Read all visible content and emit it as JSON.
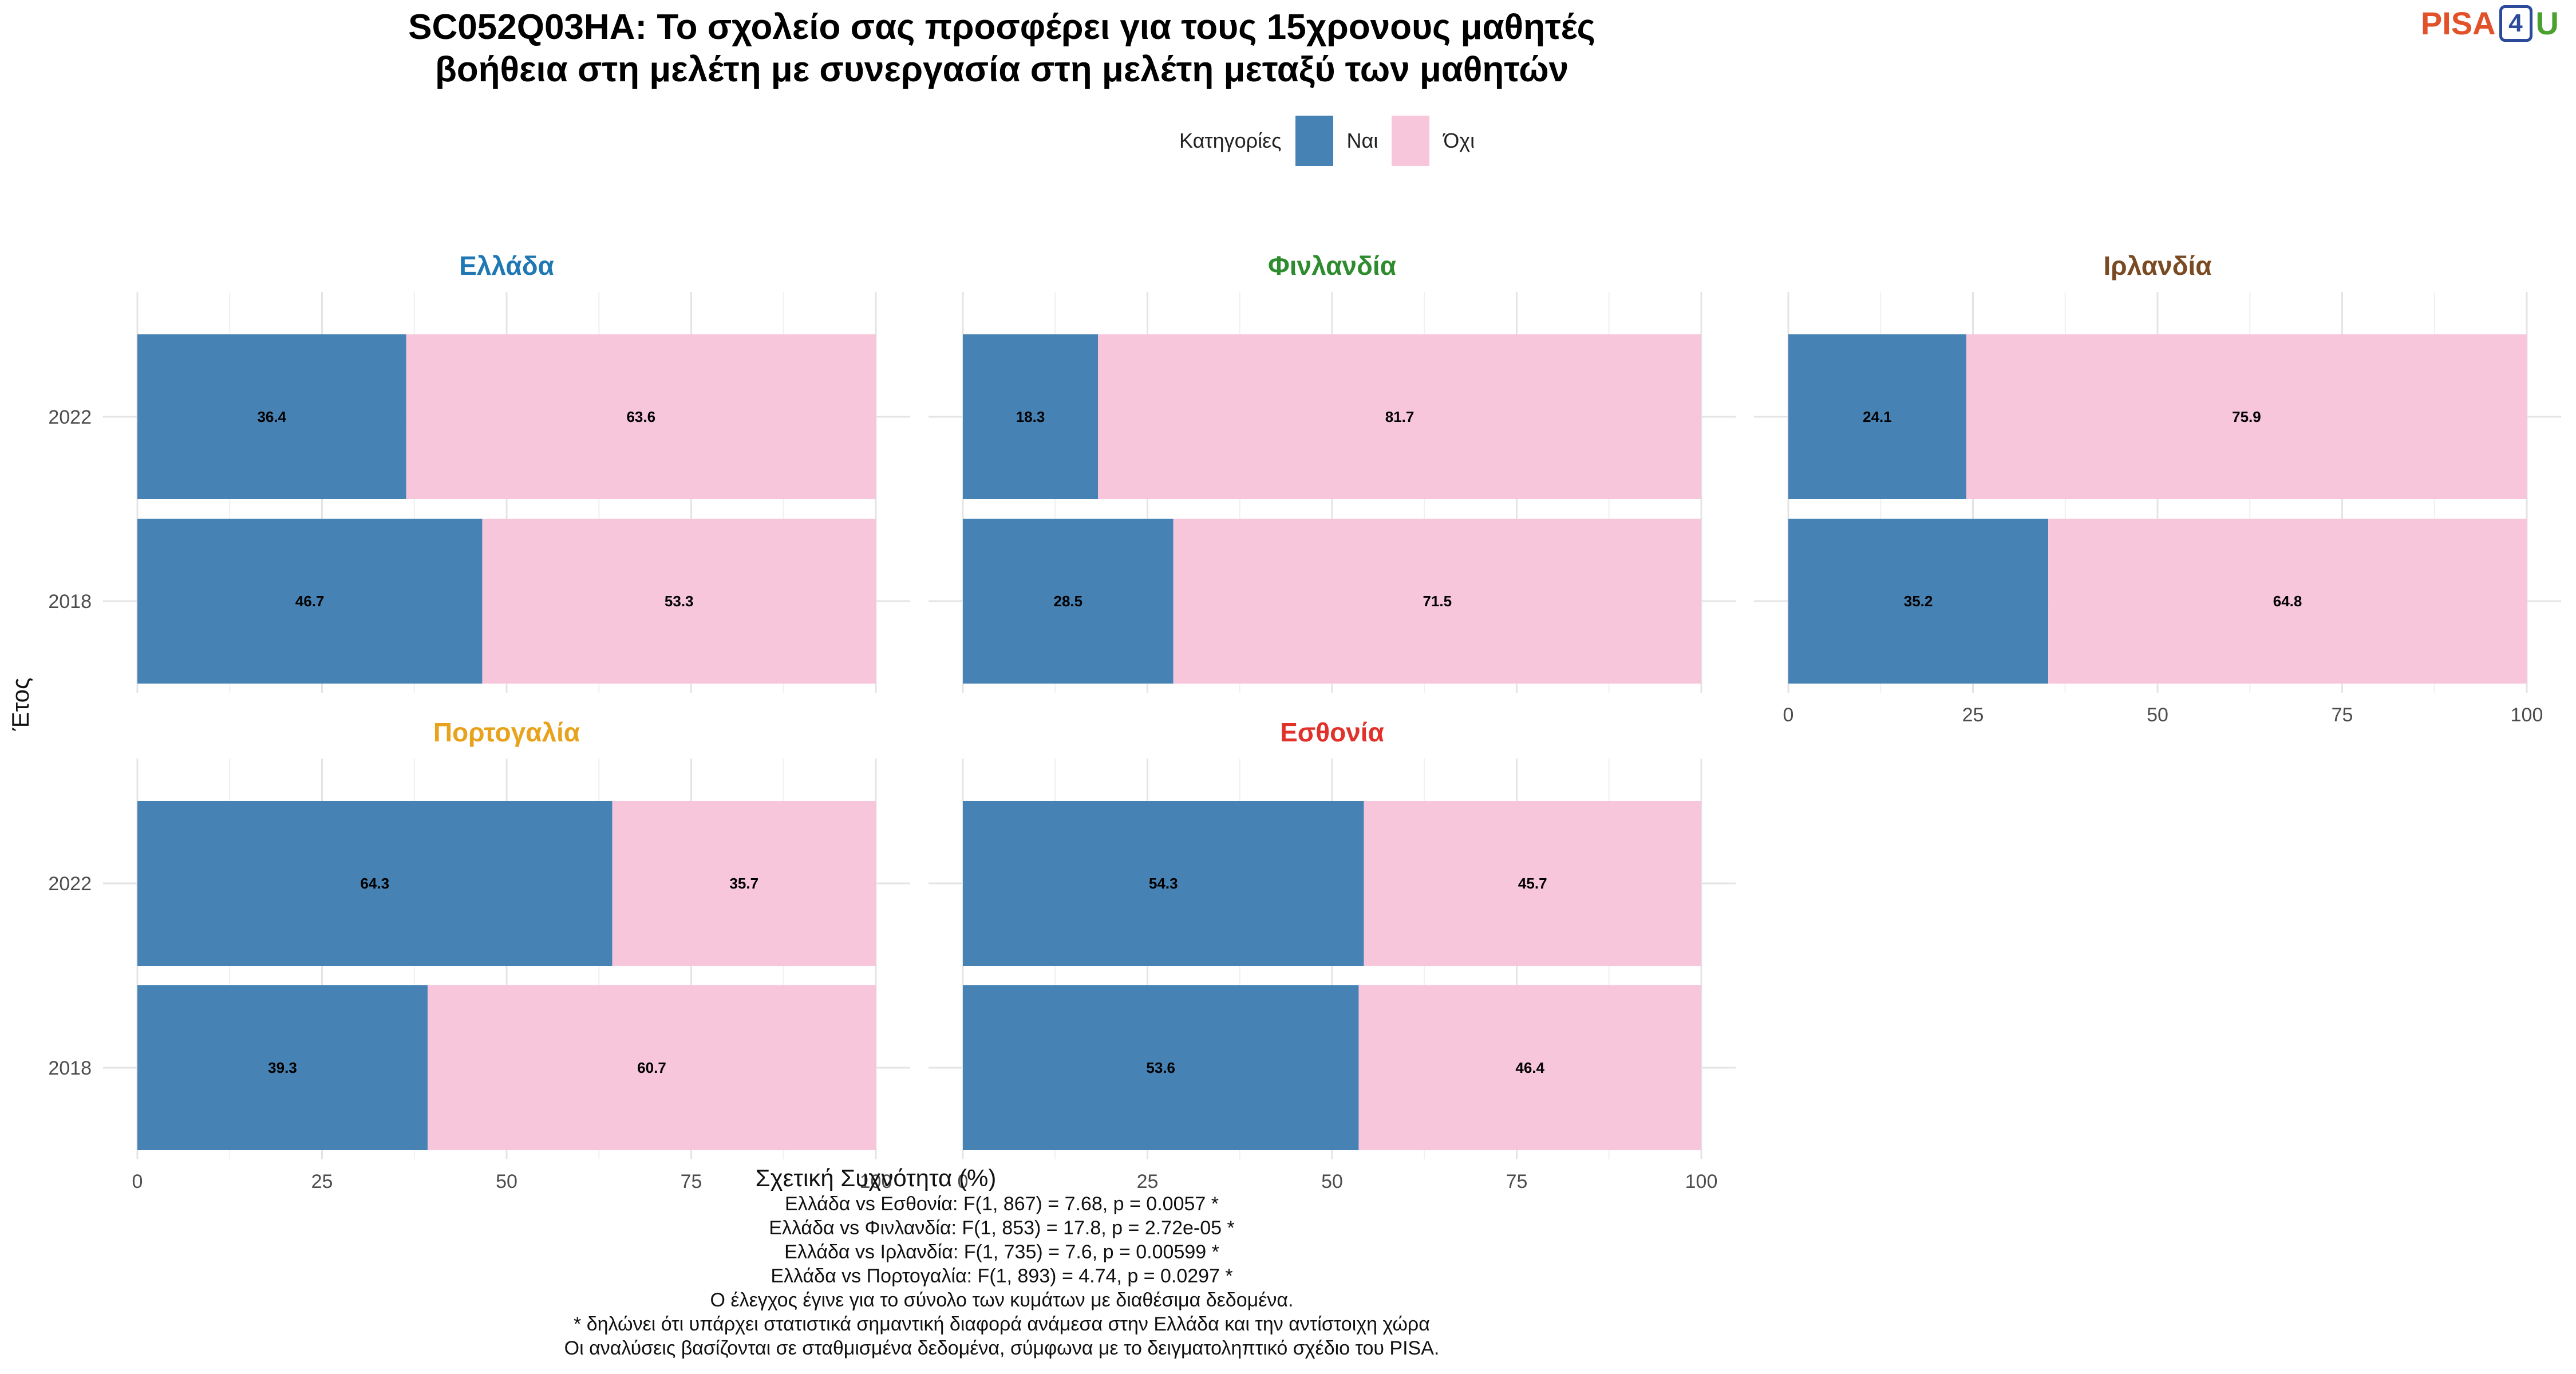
{
  "title_line1": "SC052Q03HA: Το σχολείο σας προσφέρει για τους 15χρονους μαθητές",
  "title_line2": "βοήθεια στη μελέτη με συνεργασία στη μελέτη μεταξύ των μαθητών",
  "logo": {
    "part1": "PISA",
    "part2": "4",
    "part3": "U"
  },
  "legend": {
    "title": "Κατηγορίες",
    "items": [
      {
        "label": "Ναι",
        "color": "#4682B4"
      },
      {
        "label": "Όχι",
        "color": "#F7C6DB"
      }
    ]
  },
  "notes": [
    "Ελλάδα vs Εσθονία: F(1, 867) = 7.68, p = 0.0057 *",
    "Ελλάδα vs Φινλανδία: F(1, 853) = 17.8, p = 2.72e-05 *",
    "Ελλάδα vs Ιρλανδία: F(1, 735) = 7.6, p = 0.00599 *",
    "Ελλάδα vs Πορτογαλία: F(1, 893) = 4.74, p = 0.0297 *",
    "Ο έλεγχος έγινε για το σύνολο των κυμάτων με διαθέσιμα δεδομένα.",
    "* δηλώνει ότι υπάρχει στατιστικά σημαντική διαφορά ανάμεσα στην Ελλάδα και την αντίστοιχη χώρα",
    "Οι αναλύσεις βασίζονται σε σταθμισμένα δεδομένα, σύμφωνα με το δειγματοληπτικό σχέδιο του PISA."
  ],
  "chart_data": {
    "type": "bar",
    "orientation": "horizontal",
    "stacked": true,
    "xlabel": "Σχετική Συχνότητα (%)",
    "ylabel": "Έτος",
    "xlim": [
      0,
      100
    ],
    "xticks": [
      0,
      25,
      50,
      75,
      100
    ],
    "categories": [
      "2022",
      "2018"
    ],
    "series_names": [
      "Ναι",
      "Όχι"
    ],
    "series_colors": [
      "#4682B4",
      "#F7C6DB"
    ],
    "panels": [
      {
        "name": "Ελλάδα",
        "color": "#1f77b4",
        "values": {
          "2022": [
            36.4,
            63.6
          ],
          "2018": [
            46.7,
            53.3
          ]
        }
      },
      {
        "name": "Φινλανδία",
        "color": "#2e8b2e",
        "values": {
          "2022": [
            18.3,
            81.7
          ],
          "2018": [
            28.5,
            71.5
          ]
        }
      },
      {
        "name": "Ιρλανδία",
        "color": "#7a4a22",
        "values": {
          "2022": [
            24.1,
            75.9
          ],
          "2018": [
            35.2,
            64.8
          ]
        }
      },
      {
        "name": "Πορτογαλία",
        "color": "#e8a21c",
        "values": {
          "2022": [
            64.3,
            35.7
          ],
          "2018": [
            39.3,
            60.7
          ]
        }
      },
      {
        "name": "Εσθονία",
        "color": "#e0312a",
        "values": {
          "2022": [
            54.3,
            45.7
          ],
          "2018": [
            53.6,
            46.4
          ]
        }
      }
    ]
  }
}
